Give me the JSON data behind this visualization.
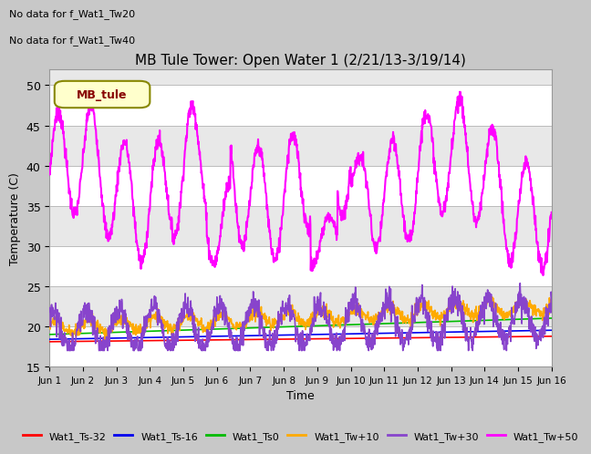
{
  "title": "MB Tule Tower: Open Water 1 (2/21/13-3/19/14)",
  "xlabel": "Time",
  "ylabel": "Temperature (C)",
  "ylim": [
    15,
    52
  ],
  "yticks": [
    15,
    20,
    25,
    30,
    35,
    40,
    45,
    50
  ],
  "xlim": [
    0,
    15
  ],
  "xtick_labels": [
    "Jun 1",
    "Jun 2",
    "Jun 3",
    "Jun 4",
    "Jun 5",
    "Jun 6",
    "Jun 7",
    "Jun 8",
    "Jun 9",
    "Jun 10",
    "Jun 11",
    "Jun 12",
    "Jun 13",
    "Jun 14",
    "Jun 15",
    "Jun 16"
  ],
  "nodata_text1": "No data for f_Wat1_Tw20",
  "nodata_text2": "No data for f_Wat1_Tw40",
  "legend_box_label": "MB_tule",
  "line_colors": {
    "Ts32": "#ff0000",
    "Ts16": "#0000ee",
    "Ts0": "#00bb00",
    "Tw10": "#ffaa00",
    "Tw30": "#8844cc",
    "Tw50": "#ff00ff"
  },
  "legend_labels": [
    "Wat1_Ts-32",
    "Wat1_Ts-16",
    "Wat1_Ts0",
    "Wat1_Tw+10",
    "Wat1_Tw+30",
    "Wat1_Tw+50"
  ],
  "band_colors": [
    "#ffffff",
    "#e8e8e8"
  ]
}
